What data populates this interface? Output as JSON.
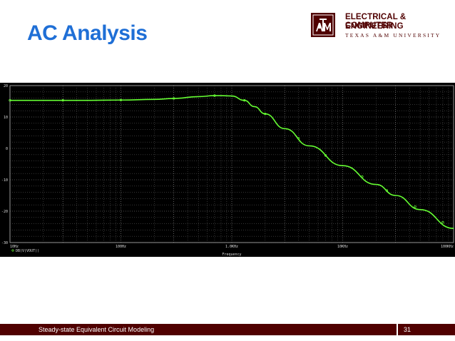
{
  "slide": {
    "title": "AC Analysis"
  },
  "logo": {
    "line1": "ELECTRICAL & COMPUTER",
    "line2": "ENGINEERING",
    "line3": "TEXAS A&M UNIVERSITY"
  },
  "footer": {
    "title": "Steady-state Equivalent Circuit Modeling",
    "page": "31"
  },
  "colors": {
    "title": "#1f6fd6",
    "maroon": "#500000",
    "trace": "#66ff33",
    "plot_bg": "#000000"
  },
  "chart_data": {
    "type": "line",
    "xscale": "log",
    "xlabel": "Frequency",
    "xlim": [
      10,
      100000
    ],
    "ylim": [
      -30,
      20
    ],
    "x_tick_values": [
      10,
      30,
      100,
      300,
      1000,
      3000,
      10000,
      30000,
      100000
    ],
    "x_tick_labels": [
      "10Hz",
      "",
      "100Hz",
      "",
      "1.0KHz",
      "",
      "10KHz",
      "",
      "100KHz"
    ],
    "y_ticks": [
      20,
      10,
      0,
      -10,
      -20,
      -30
    ],
    "grid": true,
    "legend": "bottom-left",
    "series": [
      {
        "name": "DB(V(VOUT))",
        "x": [
          10,
          20,
          30,
          50,
          100,
          200,
          300,
          500,
          700,
          800,
          1000,
          1300,
          1600,
          2000,
          3000,
          5000,
          10000,
          20000,
          30000,
          50000,
          100000
        ],
        "y": [
          15.3,
          15.3,
          15.3,
          15.3,
          15.4,
          15.6,
          15.9,
          16.5,
          16.8,
          16.8,
          16.7,
          15.3,
          13.3,
          11.0,
          6.3,
          0.8,
          -5.5,
          -11.5,
          -15.0,
          -19.5,
          -25.5
        ]
      }
    ]
  }
}
